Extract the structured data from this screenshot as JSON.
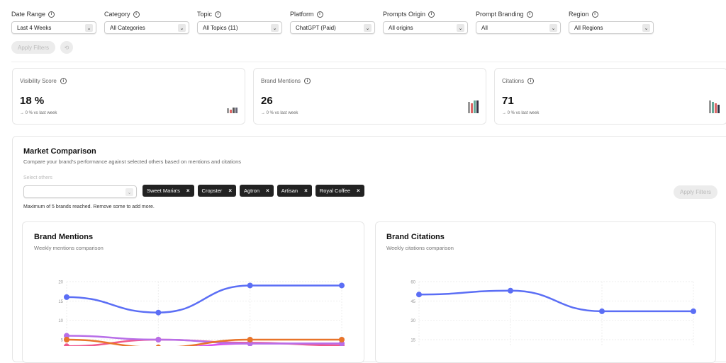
{
  "filters": [
    {
      "label": "Date Range",
      "value": "Last 4 Weeks"
    },
    {
      "label": "Category",
      "value": "All Categories"
    },
    {
      "label": "Topic",
      "value": "All Topics (11)"
    },
    {
      "label": "Platform",
      "value": "ChatGPT (Paid)"
    },
    {
      "label": "Prompts Origin",
      "value": "All origins"
    },
    {
      "label": "Prompt Branding",
      "value": "All"
    },
    {
      "label": "Region",
      "value": "All Regions"
    }
  ],
  "apply_filters_label": "Apply Filters",
  "kpis": [
    {
      "label": "Visibility Score",
      "value": "18 %",
      "change": "→ 0 % vs last week"
    },
    {
      "label": "Brand Mentions",
      "value": "26",
      "change": "→ 0 % vs last week"
    },
    {
      "label": "Citations",
      "value": "71",
      "change": "→ 0 % vs last week"
    }
  ],
  "market": {
    "title": "Market Comparison",
    "subtitle": "Compare your brand's performance against selected others based on mentions and citations",
    "select_label": "Select others",
    "tags": [
      "Sweet Maria's",
      "Cropster",
      "Agtron",
      "Artisan",
      "Royal Coffee"
    ],
    "limit_note": "Maximum of 5 brands reached. Remove some to add more.",
    "apply_label": "Apply Filters"
  },
  "chart_data": [
    {
      "type": "line",
      "title": "Brand Mentions",
      "subtitle": "Weekly mentions comparison",
      "yticks": [
        20,
        15,
        10,
        5
      ],
      "ylim": [
        0,
        20
      ],
      "grid": true,
      "series": [
        {
          "color": "#5b6ef5",
          "values": [
            16,
            12,
            19,
            19
          ]
        },
        {
          "color": "#e8742a",
          "values": [
            5,
            3,
            5,
            5
          ]
        },
        {
          "color": "#b86ee8",
          "values": [
            6,
            5,
            4,
            4
          ]
        },
        {
          "color": "#f0588c",
          "values": [
            3.3,
            5,
            4.2,
            3.5
          ]
        },
        {
          "color": "#d94ff0",
          "values": [
            3.2,
            2.8,
            4,
            4
          ]
        }
      ]
    },
    {
      "type": "line",
      "title": "Brand Citations",
      "subtitle": "Weekly citations comparison",
      "yticks": [
        60,
        45,
        30,
        15
      ],
      "ylim": [
        0,
        60
      ],
      "grid": true,
      "series": [
        {
          "color": "#5b6ef5",
          "values": [
            50,
            53,
            37,
            37
          ]
        }
      ]
    }
  ]
}
